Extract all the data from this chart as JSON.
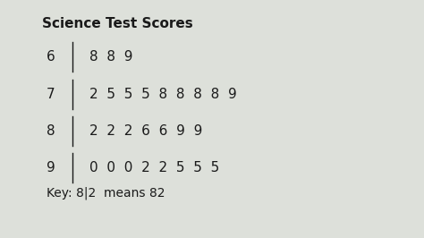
{
  "title": "Science Test Scores",
  "title_fontsize": 11,
  "title_fontweight": "bold",
  "rows": [
    {
      "stem": "6",
      "leaves": "8  8  9"
    },
    {
      "stem": "7",
      "leaves": "2  5  5  5  8  8  8  8  9"
    },
    {
      "stem": "8",
      "leaves": "2  2  2  6  6  9  9"
    },
    {
      "stem": "9",
      "leaves": "0  0  0  2  2  5  5  5"
    }
  ],
  "key_text": "Key: 8|2  means 82",
  "background_color": "#c8ccc8",
  "card_color": "#dde0da",
  "text_color": "#1a1a1a",
  "font_family": "DejaVu Sans",
  "font_size": 11,
  "key_fontsize": 10
}
